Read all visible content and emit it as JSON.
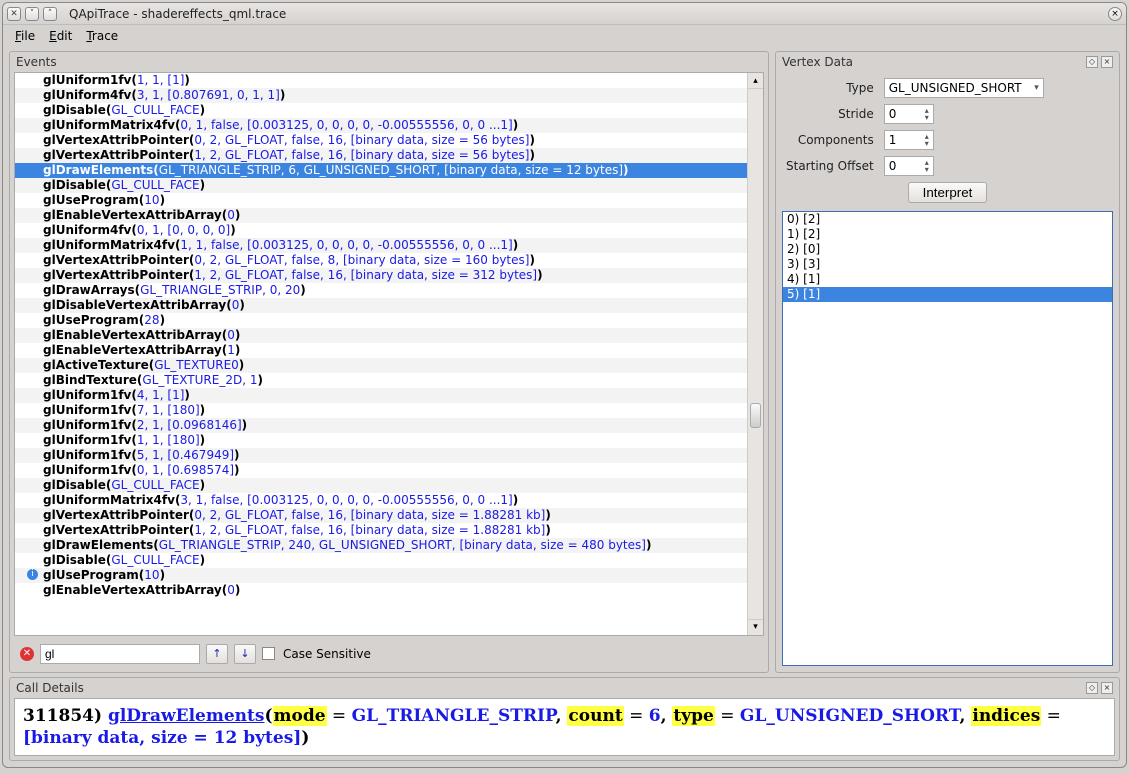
{
  "window_title": "QApiTrace - shadereffects_qml.trace",
  "menu": {
    "file": "File",
    "edit": "Edit",
    "trace": "Trace"
  },
  "panels": {
    "events": "Events",
    "vertex": "Vertex Data",
    "details": "Call Details"
  },
  "search": {
    "value": "gl",
    "case_label": "Case Sensitive"
  },
  "events": [
    {
      "fn": "glUniform1fv",
      "args": "1, 1, [1]"
    },
    {
      "fn": "glUniform4fv",
      "args": "3, 1, [0.807691, 0, 1, 1]"
    },
    {
      "fn": "glDisable",
      "args": "GL_CULL_FACE"
    },
    {
      "fn": "glUniformMatrix4fv",
      "args": "0, 1, false, [0.003125, 0, 0, 0, 0, -0.00555556, 0, 0 ...1]"
    },
    {
      "fn": "glVertexAttribPointer",
      "args": "0, 2, GL_FLOAT, false, 16, [binary data, size = 56 bytes]"
    },
    {
      "fn": "glVertexAttribPointer",
      "args": "1, 2, GL_FLOAT, false, 16, [binary data, size = 56 bytes]"
    },
    {
      "fn": "glDrawElements",
      "args": "GL_TRIANGLE_STRIP, 6, GL_UNSIGNED_SHORT, [binary data, size = 12 bytes]",
      "selected": true
    },
    {
      "fn": "glDisable",
      "args": "GL_CULL_FACE"
    },
    {
      "fn": "glUseProgram",
      "args": "10"
    },
    {
      "fn": "glEnableVertexAttribArray",
      "args": "0"
    },
    {
      "fn": "glUniform4fv",
      "args": "0, 1, [0, 0, 0, 0]"
    },
    {
      "fn": "glUniformMatrix4fv",
      "args": "1, 1, false, [0.003125, 0, 0, 0, 0, -0.00555556, 0, 0 ...1]"
    },
    {
      "fn": "glVertexAttribPointer",
      "args": "0, 2, GL_FLOAT, false, 8, [binary data, size = 160 bytes]"
    },
    {
      "fn": "glVertexAttribPointer",
      "args": "1, 2, GL_FLOAT, false, 16, [binary data, size = 312 bytes]"
    },
    {
      "fn": "glDrawArrays",
      "args": "GL_TRIANGLE_STRIP, 0, 20"
    },
    {
      "fn": "glDisableVertexAttribArray",
      "args": "0"
    },
    {
      "fn": "glUseProgram",
      "args": "28"
    },
    {
      "fn": "glEnableVertexAttribArray",
      "args": "0"
    },
    {
      "fn": "glEnableVertexAttribArray",
      "args": "1"
    },
    {
      "fn": "glActiveTexture",
      "args": "GL_TEXTURE0"
    },
    {
      "fn": "glBindTexture",
      "args": "GL_TEXTURE_2D, 1"
    },
    {
      "fn": "glUniform1fv",
      "args": "4, 1, [1]"
    },
    {
      "fn": "glUniform1fv",
      "args": "7, 1, [180]"
    },
    {
      "fn": "glUniform1fv",
      "args": "2, 1, [0.0968146]"
    },
    {
      "fn": "glUniform1fv",
      "args": "1, 1, [180]"
    },
    {
      "fn": "glUniform1fv",
      "args": "5, 1, [0.467949]"
    },
    {
      "fn": "glUniform1fv",
      "args": "0, 1, [0.698574]"
    },
    {
      "fn": "glDisable",
      "args": "GL_CULL_FACE"
    },
    {
      "fn": "glUniformMatrix4fv",
      "args": "3, 1, false, [0.003125, 0, 0, 0, 0, -0.00555556, 0, 0 ...1]"
    },
    {
      "fn": "glVertexAttribPointer",
      "args": "0, 2, GL_FLOAT, false, 16, [binary data, size = 1.88281 kb]"
    },
    {
      "fn": "glVertexAttribPointer",
      "args": "1, 2, GL_FLOAT, false, 16, [binary data, size = 1.88281 kb]"
    },
    {
      "fn": "glDrawElements",
      "args": "GL_TRIANGLE_STRIP, 240, GL_UNSIGNED_SHORT, [binary data, size = 480 bytes]"
    },
    {
      "fn": "glDisable",
      "args": "GL_CULL_FACE"
    },
    {
      "fn": "glUseProgram",
      "args": "10",
      "info": true
    },
    {
      "fn": "glEnableVertexAttribArray",
      "args": "0"
    }
  ],
  "vertex_form": {
    "type_label": "Type",
    "type_value": "GL_UNSIGNED_SHORT",
    "stride_label": "Stride",
    "stride_value": "0",
    "components_label": "Components",
    "components_value": "1",
    "offset_label": "Starting Offset",
    "offset_value": "0",
    "interpret_label": "Interpret"
  },
  "vertex_data": [
    {
      "label": "0) [2]"
    },
    {
      "label": "1) [2]"
    },
    {
      "label": "2) [0]"
    },
    {
      "label": "3) [3]"
    },
    {
      "label": "4) [1]"
    },
    {
      "label": "5) [1]",
      "selected": true
    }
  ],
  "details": {
    "callno": "311854",
    "fn": "glDrawElements",
    "params": [
      {
        "name": "mode",
        "value": "GL_TRIANGLE_STRIP"
      },
      {
        "name": "count",
        "value": "6"
      },
      {
        "name": "type",
        "value": "GL_UNSIGNED_SHORT"
      },
      {
        "name": "indices",
        "value": "[binary data, size = 12 bytes]"
      }
    ]
  }
}
